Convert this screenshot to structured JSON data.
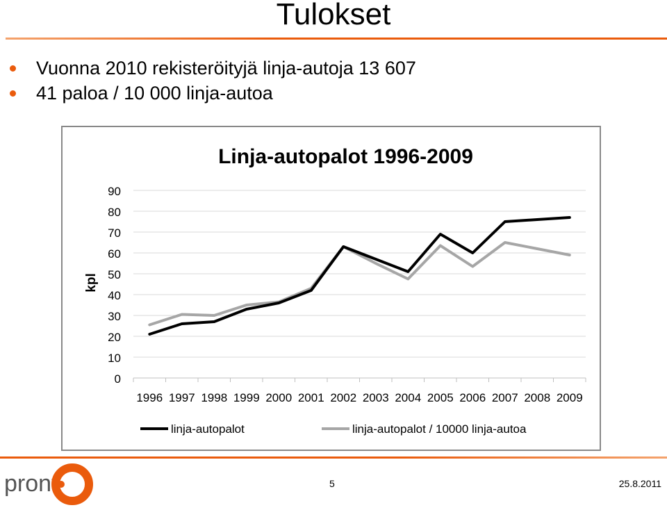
{
  "slide": {
    "title": "Tulokset",
    "bullets": [
      "Vuonna 2010 rekisteröityjä linja-autoja 13 607",
      "41 paloa / 10 000 linja-autoa"
    ],
    "page_number": "5",
    "date": "25.8.2011",
    "logo_text": "pront",
    "accent_color": "#ea5b0c"
  },
  "chart_data": {
    "type": "line",
    "title": "Linja-autopalot 1996-2009",
    "xlabel": "",
    "ylabel": "kpl",
    "ylim": [
      0,
      90
    ],
    "yticks": [
      0,
      10,
      20,
      30,
      40,
      50,
      60,
      70,
      80,
      90
    ],
    "grid": true,
    "legend_position": "bottom",
    "categories": [
      "1996",
      "1997",
      "1998",
      "1999",
      "2000",
      "2001",
      "2002",
      "2003",
      "2004",
      "2005",
      "2006",
      "2007",
      "2008",
      "2009"
    ],
    "series": [
      {
        "name": "linja-autopalot",
        "color": "#000000",
        "values": [
          21,
          26,
          27,
          33,
          36,
          42,
          63,
          57,
          51,
          69,
          60,
          75,
          76,
          77
        ]
      },
      {
        "name": "linja-autopalot / 10000 linja-autoa",
        "color": "#a6a6a6",
        "values": [
          25.5,
          30.5,
          30,
          35,
          36.5,
          43,
          63,
          55,
          47.5,
          63.5,
          53.5,
          65,
          62,
          59
        ]
      }
    ]
  }
}
